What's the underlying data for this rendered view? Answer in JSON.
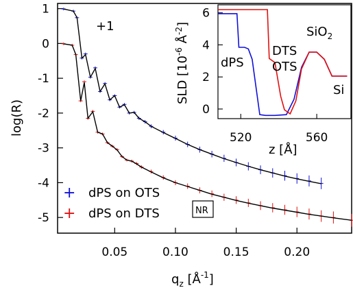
{
  "chart_data": [
    {
      "type": "line",
      "xlabel": "q",
      "xlabel_sub": "z",
      "xlabel_unit": "[Å",
      "xlabel_sup": "-1",
      "xlabel_close": "]",
      "ylabel": "log(R)",
      "xlim": [
        0.003,
        0.245
      ],
      "ylim": [
        -5.45,
        1.15
      ],
      "xticks": [
        "0.05",
        "0.10",
        "0.15",
        "0.20"
      ],
      "xtick_values": [
        0.05,
        0.1,
        0.15,
        0.2
      ],
      "yticks": [
        "1",
        "0",
        "-1",
        "-2",
        "-3",
        "-4",
        "-5"
      ],
      "ytick_values": [
        1,
        0,
        -1,
        -2,
        -3,
        -4,
        -5
      ],
      "offset_label": "+1",
      "box_label": "NR",
      "legend": [
        {
          "marker": "+",
          "text": "dPS on OTS",
          "color": "#1010d8"
        },
        {
          "marker": "+",
          "text": "dPS on DTS",
          "color": "#e01010"
        }
      ],
      "series": [
        {
          "name": "dPS on OTS",
          "color": "#1010d8",
          "offset": 1,
          "x": [
            0.008,
            0.016,
            0.019,
            0.023,
            0.026,
            0.03,
            0.034,
            0.038,
            0.042,
            0.046,
            0.05,
            0.054,
            0.058,
            0.062,
            0.066,
            0.07,
            0.075,
            0.08,
            0.09,
            0.1,
            0.11,
            0.12,
            0.13,
            0.14,
            0.15,
            0.16,
            0.17,
            0.18,
            0.19,
            0.2,
            0.21,
            0.22
          ],
          "y": [
            0.99,
            0.93,
            0.74,
            -0.42,
            -0.3,
            -0.97,
            -0.7,
            -1.38,
            -1.15,
            -1.62,
            -1.5,
            -1.83,
            -1.75,
            -2.0,
            -1.98,
            -2.15,
            -2.25,
            -2.38,
            -2.55,
            -2.72,
            -2.9,
            -3.05,
            -3.18,
            -3.3,
            -3.42,
            -3.53,
            -3.63,
            -3.72,
            -3.8,
            -3.88,
            -3.95,
            -4.02
          ],
          "fit_y": [
            0.99,
            0.93,
            0.74,
            -0.42,
            -0.32,
            -0.97,
            -0.72,
            -1.38,
            -1.16,
            -1.62,
            -1.5,
            -1.83,
            -1.76,
            -2.0,
            -1.98,
            -2.15,
            -2.25,
            -2.38,
            -2.56,
            -2.73,
            -2.9,
            -3.05,
            -3.18,
            -3.31,
            -3.42,
            -3.53,
            -3.63,
            -3.72,
            -3.81,
            -3.89,
            -3.96,
            -4.03
          ]
        },
        {
          "name": "dPS on DTS",
          "color": "#e01010",
          "offset": 0,
          "x": [
            0.008,
            0.015,
            0.018,
            0.022,
            0.025,
            0.028,
            0.032,
            0.036,
            0.04,
            0.044,
            0.048,
            0.052,
            0.056,
            0.06,
            0.064,
            0.068,
            0.072,
            0.08,
            0.09,
            0.1,
            0.11,
            0.12,
            0.13,
            0.14,
            0.15,
            0.16,
            0.17,
            0.18,
            0.19,
            0.2,
            0.21,
            0.22,
            0.23,
            0.245
          ],
          "y": [
            -0.01,
            -0.05,
            -0.32,
            -1.65,
            -1.1,
            -2.15,
            -1.95,
            -2.55,
            -2.6,
            -2.85,
            -2.95,
            -3.05,
            -3.25,
            -3.35,
            -3.38,
            -3.45,
            -3.55,
            -3.68,
            -3.85,
            -4.0,
            -4.1,
            -4.22,
            -4.32,
            -4.42,
            -4.5,
            -4.58,
            -4.66,
            -4.72,
            -4.78,
            -4.84,
            -4.9,
            -4.96,
            -5.0,
            -5.08
          ],
          "fit_y": [
            -0.01,
            -0.05,
            -0.32,
            -1.65,
            -1.12,
            -2.15,
            -1.96,
            -2.55,
            -2.6,
            -2.85,
            -2.95,
            -3.06,
            -3.25,
            -3.35,
            -3.38,
            -3.46,
            -3.55,
            -3.69,
            -3.86,
            -4.0,
            -4.11,
            -4.22,
            -4.33,
            -4.42,
            -4.51,
            -4.59,
            -4.66,
            -4.73,
            -4.79,
            -4.85,
            -4.91,
            -4.96,
            -5.01,
            -5.08
          ]
        }
      ]
    },
    {
      "type": "line",
      "inset": true,
      "xlabel": "z [Å]",
      "ylabel_main": "SLD [10",
      "ylabel_sup": "-6",
      "ylabel_mid": " Å",
      "ylabel_sup2": "-2",
      "ylabel_close": "]",
      "xlim": [
        508,
        578
      ],
      "ylim": [
        -0.6,
        6.5
      ],
      "xticks": [
        "520",
        "560"
      ],
      "xtick_values": [
        520,
        560
      ],
      "yticks": [
        "6",
        "4",
        "2",
        "0"
      ],
      "ytick_values": [
        6,
        4,
        2,
        0
      ],
      "annotations": {
        "dps": "dPS",
        "dts": "DTS",
        "ots": "OTS",
        "sio2_main": "SiO",
        "sio2_sub": "2",
        "si": "Si"
      },
      "series": [
        {
          "name": "OTS",
          "color": "#1010d8",
          "x": [
            508,
            518,
            519,
            522,
            524,
            526,
            530,
            533,
            538,
            544,
            548,
            552,
            556,
            560,
            564,
            568,
            572,
            576
          ],
          "y": [
            5.95,
            5.95,
            3.85,
            3.85,
            3.75,
            3.1,
            -0.35,
            -0.4,
            -0.4,
            -0.35,
            0.6,
            2.6,
            3.55,
            3.55,
            3.1,
            2.05,
            2.05,
            2.05
          ]
        },
        {
          "name": "DTS",
          "color": "#e01010",
          "x": [
            508,
            534,
            535,
            538,
            541,
            543,
            546,
            549,
            552,
            556,
            560,
            564,
            568,
            572,
            576
          ],
          "y": [
            6.2,
            6.2,
            3.15,
            2.9,
            0.8,
            -0.05,
            -0.3,
            0.5,
            2.5,
            3.55,
            3.55,
            3.1,
            2.05,
            2.05,
            2.05
          ]
        }
      ]
    }
  ]
}
